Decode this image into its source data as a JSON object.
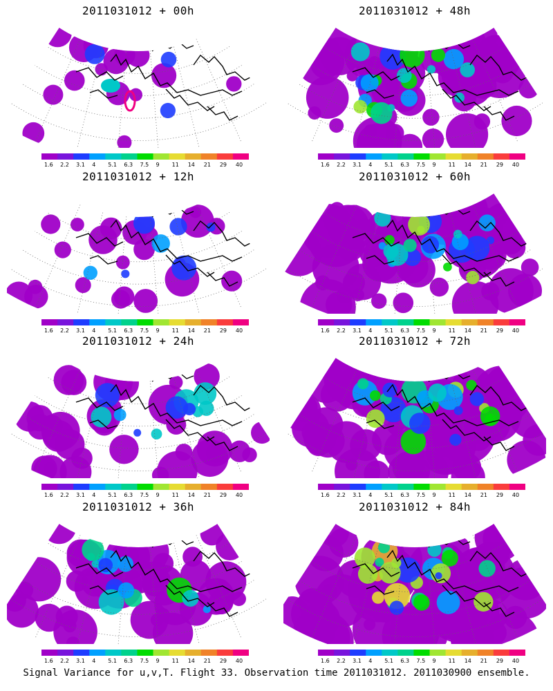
{
  "panels": [
    {
      "title": "2011031012 + 00h",
      "lead": 0
    },
    {
      "title": "2011031012 + 48h",
      "lead": 48
    },
    {
      "title": "2011031012 + 12h",
      "lead": 12
    },
    {
      "title": "2011031012 + 60h",
      "lead": 60
    },
    {
      "title": "2011031012 + 24h",
      "lead": 24
    },
    {
      "title": "2011031012 + 72h",
      "lead": 72
    },
    {
      "title": "2011031012 + 36h",
      "lead": 36
    },
    {
      "title": "2011031012 + 84h",
      "lead": 84
    }
  ],
  "colorbar": {
    "labels": [
      "1.6",
      "2.2",
      "3.1",
      "4",
      "5.1",
      "6.3",
      "7.5",
      "9",
      "11",
      "14",
      "21",
      "29",
      "40"
    ],
    "colors": [
      "#a000c8",
      "#7814dc",
      "#1e3cff",
      "#00a0ff",
      "#00c8c8",
      "#00d28c",
      "#00dc00",
      "#a0e632",
      "#e6dc32",
      "#e6af2d",
      "#f08228",
      "#fa3c3c",
      "#f00082"
    ]
  },
  "caption": "Signal Variance for u,v,T. Flight 33. Observation time 2011031012. 2011030900 ensemble.",
  "colors": {
    "coast": "#000000",
    "grid": "#666666"
  }
}
